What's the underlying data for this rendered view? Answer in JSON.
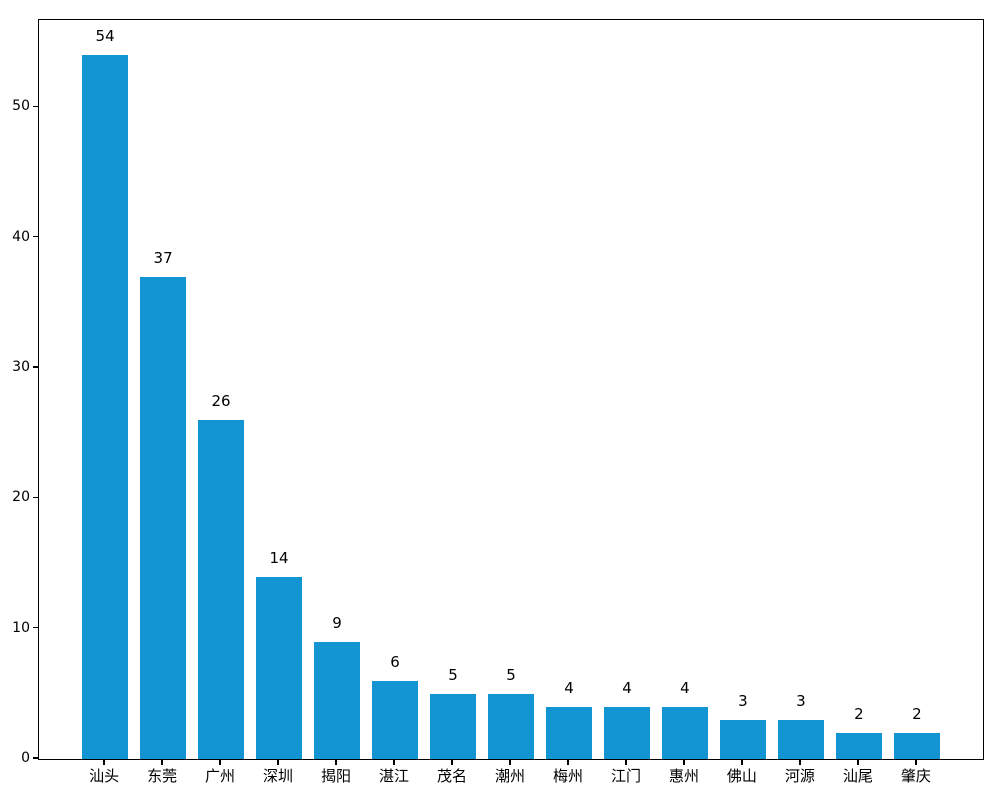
{
  "chart_data": {
    "type": "bar",
    "categories": [
      "汕头",
      "东莞",
      "广州",
      "深圳",
      "揭阳",
      "湛江",
      "茂名",
      "潮州",
      "梅州",
      "江门",
      "惠州",
      "佛山",
      "河源",
      "汕尾",
      "肇庆"
    ],
    "values": [
      54,
      37,
      26,
      14,
      9,
      6,
      5,
      5,
      4,
      4,
      4,
      3,
      3,
      2,
      2
    ],
    "bar_labels": [
      "54",
      "37",
      "26",
      "14",
      "9",
      "6",
      "5",
      "5",
      "4",
      "4",
      "4",
      "3",
      "3",
      "2",
      "2"
    ],
    "title": "",
    "xlabel": "",
    "ylabel": "",
    "yticks": [
      0,
      10,
      20,
      30,
      40,
      50
    ],
    "ytick_labels": [
      "0",
      "10",
      "20",
      "30",
      "40",
      "50"
    ],
    "ylim": [
      0,
      56.7
    ],
    "xlim": [
      -1.14,
      15.14
    ],
    "bar_width_units": 0.8,
    "grid": false,
    "legend_position": "none",
    "bar_color": "#1295d2",
    "axis_color": "#000000",
    "text_color": "#000000",
    "background_color": "#ffffff"
  }
}
